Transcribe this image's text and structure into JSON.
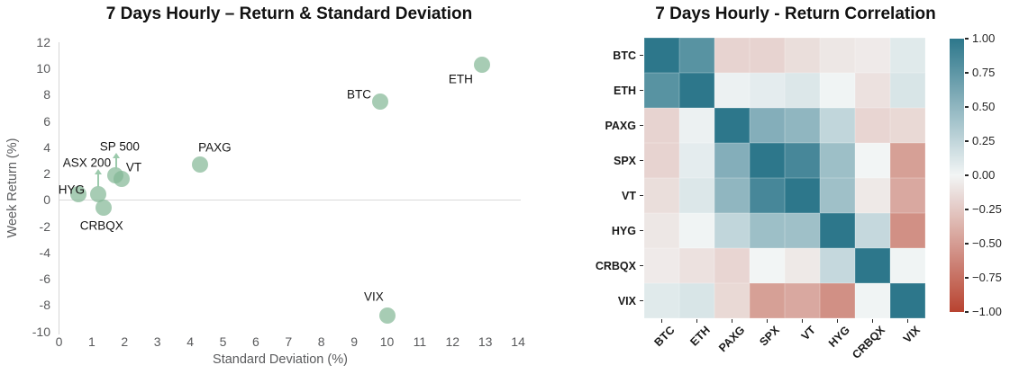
{
  "chart_data": [
    {
      "type": "scatter",
      "title": "7 Days Hourly – Return & Standard Deviation",
      "xlabel": "Standard Deviation (%)",
      "ylabel": "Week Return (%)",
      "xlim": [
        0,
        14
      ],
      "ylim": [
        -10,
        12
      ],
      "x_ticks": [
        "0",
        "1",
        "2",
        "3",
        "4",
        "5",
        "6",
        "7",
        "8",
        "9",
        "10",
        "11",
        "12",
        "13",
        "14"
      ],
      "y_ticks": [
        "12",
        "10",
        "8",
        "6",
        "4",
        "2",
        "0",
        "-2",
        "-4",
        "-6",
        "-8",
        "-10"
      ],
      "grid": "zero-line-only",
      "marker_color": "#81b794",
      "marker_opacity": 0.7,
      "marker_color_displayed": "#a7cdb4",
      "arrow_color": "#9ccaac",
      "points": [
        {
          "label": "HYG",
          "x": 0.6,
          "y": 0.4,
          "label_x": 0.38,
          "label_y": 0.75
        },
        {
          "label": "ASX 200",
          "x": 1.2,
          "y": 0.4,
          "label_x": 0.85,
          "label_y": 2.85
        },
        {
          "label": "CRBQX",
          "x": 1.35,
          "y": -0.6,
          "label_x": 1.3,
          "label_y": -1.95
        },
        {
          "label": "SP 500",
          "x": 1.73,
          "y": 1.9,
          "label_x": 1.85,
          "label_y": 4.05
        },
        {
          "label": "VT",
          "x": 1.92,
          "y": 1.6,
          "label_x": 2.28,
          "label_y": 2.45
        },
        {
          "label": "PAXG",
          "x": 4.3,
          "y": 2.7,
          "label_x": 4.75,
          "label_y": 4.0
        },
        {
          "label": "BTC",
          "x": 9.8,
          "y": 7.5,
          "label_x": 9.15,
          "label_y": 8.0
        },
        {
          "label": "ETH",
          "x": 12.9,
          "y": 10.25,
          "label_x": 12.25,
          "label_y": 9.2
        },
        {
          "label": "VIX",
          "x": 10.0,
          "y": -8.8,
          "label_x": 9.6,
          "label_y": -7.4
        }
      ],
      "annotation_arrows": [
        {
          "for": "ASX 200",
          "x": 1.2,
          "y_from": 0.95,
          "y_to": 2.35
        },
        {
          "for": "SP 500",
          "x": 1.74,
          "y_from": 2.35,
          "y_to": 3.6
        }
      ]
    },
    {
      "type": "heatmap",
      "title": "7 Days Hourly - Return Correlation",
      "labels": [
        "BTC",
        "ETH",
        "PAXG",
        "SPX",
        "VT",
        "HYG",
        "CRBQX",
        "VIX"
      ],
      "matrix": [
        [
          1.0,
          0.78,
          -0.19,
          -0.19,
          -0.13,
          -0.08,
          -0.06,
          0.09
        ],
        [
          0.78,
          1.0,
          0.03,
          0.07,
          0.11,
          0.01,
          -0.11,
          0.13
        ],
        [
          -0.19,
          0.03,
          1.0,
          0.56,
          0.5,
          0.25,
          -0.18,
          -0.16
        ],
        [
          -0.19,
          0.07,
          0.56,
          1.0,
          0.87,
          0.43,
          0.0,
          -0.48
        ],
        [
          -0.13,
          0.11,
          0.5,
          0.87,
          1.0,
          0.42,
          -0.07,
          -0.43
        ],
        [
          -0.08,
          0.01,
          0.25,
          0.43,
          0.42,
          1.0,
          0.23,
          -0.57
        ],
        [
          -0.06,
          -0.11,
          -0.18,
          0.0,
          -0.07,
          0.23,
          1.0,
          0.01
        ],
        [
          0.09,
          0.13,
          -0.16,
          -0.48,
          -0.43,
          -0.57,
          0.01,
          1.0
        ]
      ],
      "vmin": -1.0,
      "vmax": 1.0,
      "colormap": {
        "positive": "#2d778b",
        "mid": "#f2f5f5",
        "negative": "#b84330"
      },
      "colorbar_tick_labels": [
        "1.00",
        "0.75",
        "0.50",
        "0.25",
        "0.00",
        "−0.25",
        "−0.50",
        "−0.75",
        "−1.00"
      ],
      "colorbar_position": "right"
    }
  ]
}
